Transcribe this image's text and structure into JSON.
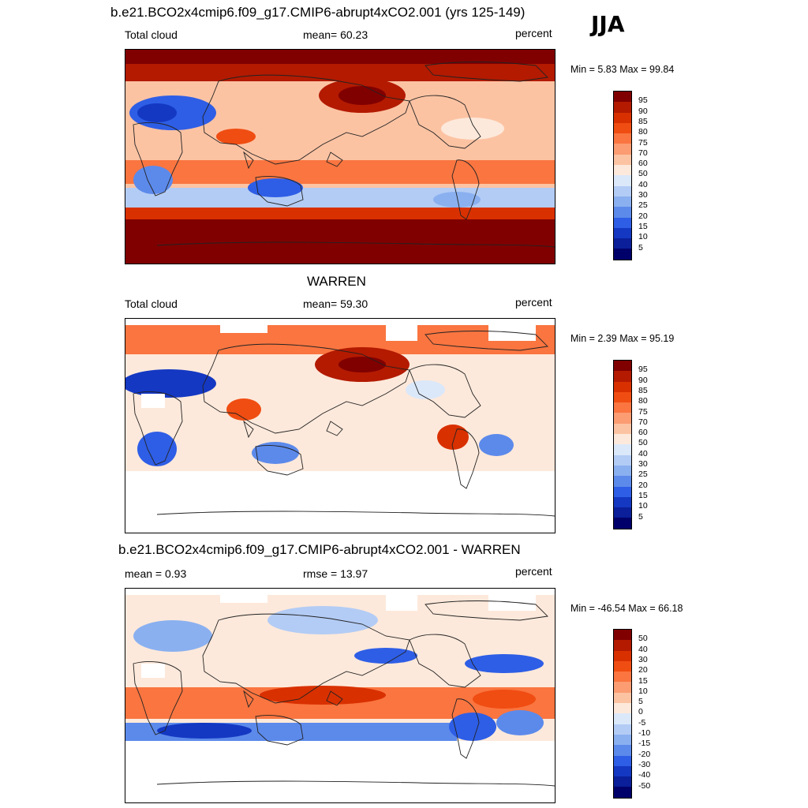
{
  "season_label": "JJA",
  "panels": [
    {
      "title": "b.e21.BCO2x4cmip6.f09_g17.CMIP6-abrupt4xCO2.001 (yrs 125-149)",
      "left_label": "Total cloud",
      "center_label": "mean=  60.23",
      "right_label": "percent",
      "minmax": "Min =    5.83 Max =  99.84",
      "colorbar_labels": [
        "95",
        "90",
        "85",
        "80",
        "75",
        "70",
        "60",
        "50",
        "40",
        "30",
        "25",
        "20",
        "15",
        "10",
        "5"
      ],
      "colorbar_colors": [
        "#800000",
        "#b31a00",
        "#d93000",
        "#f04d12",
        "#fa7540",
        "#fb9c72",
        "#fcc3a3",
        "#fde9db",
        "#dbe8fa",
        "#b3ccf5",
        "#8ab0f0",
        "#5c8aeb",
        "#2e5ee6",
        "#1438c2",
        "#0a1f99",
        "#00006b"
      ],
      "mask_land_bottom": false
    },
    {
      "title": "WARREN",
      "left_label": "Total cloud",
      "center_label": "mean=  59.30",
      "right_label": "percent",
      "minmax": "Min =    2.39 Max =  95.19",
      "colorbar_labels": [
        "95",
        "90",
        "85",
        "80",
        "75",
        "70",
        "60",
        "50",
        "40",
        "30",
        "25",
        "20",
        "15",
        "10",
        "5"
      ],
      "colorbar_colors": [
        "#800000",
        "#b31a00",
        "#d93000",
        "#f04d12",
        "#fa7540",
        "#fb9c72",
        "#fcc3a3",
        "#fde9db",
        "#dbe8fa",
        "#b3ccf5",
        "#8ab0f0",
        "#5c8aeb",
        "#2e5ee6",
        "#1438c2",
        "#0a1f99",
        "#00006b"
      ],
      "mask_land_bottom": true
    },
    {
      "title": "b.e21.BCO2x4cmip6.f09_g17.CMIP6-abrupt4xCO2.001 - WARREN",
      "left_label": "mean =    0.93",
      "center_label": "rmse =  13.97",
      "right_label": "percent",
      "minmax": "Min = -46.54 Max =  66.18",
      "colorbar_labels": [
        "50",
        "40",
        "30",
        "20",
        "15",
        "10",
        "5",
        "0",
        "-5",
        "-10",
        "-15",
        "-20",
        "-30",
        "-40",
        "-50"
      ],
      "colorbar_colors": [
        "#800000",
        "#b31a00",
        "#d93000",
        "#f04d12",
        "#fa7540",
        "#fb9c72",
        "#fcc3a3",
        "#fde9db",
        "#dbe8fa",
        "#b3ccf5",
        "#8ab0f0",
        "#5c8aeb",
        "#2e5ee6",
        "#1438c2",
        "#0a1f99",
        "#00006b"
      ],
      "mask_land_bottom": true
    }
  ]
}
